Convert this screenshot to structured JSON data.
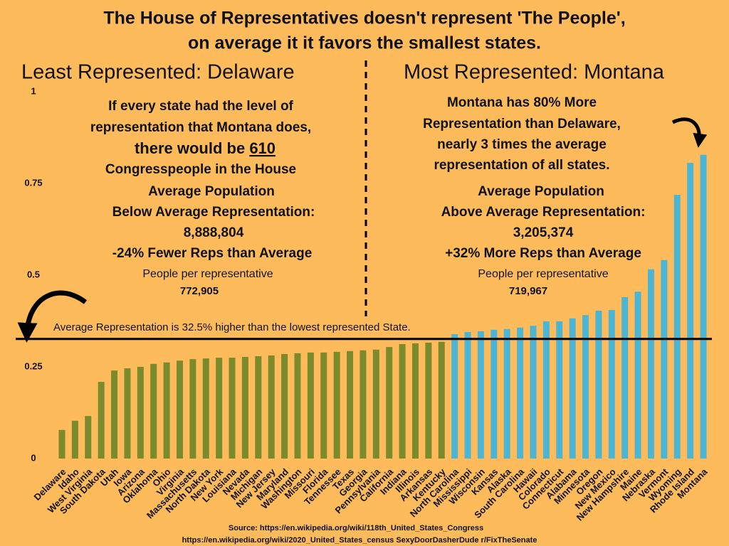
{
  "chart_data": {
    "type": "bar",
    "title_lines": [
      "The House of Representatives doesn't represent 'The People',",
      "on average it it favors the smallest states."
    ],
    "categories": [
      "Delaware",
      "Idaho",
      "West Virginia",
      "South Dakota",
      "Utah",
      "Iowa",
      "Arizona",
      "Oklahoma",
      "Ohio",
      "Virginia",
      "Massachusetts",
      "North Dakota",
      "New York",
      "Louisiana",
      "Nevada",
      "Michigan",
      "New Jersey",
      "Maryland",
      "Washington",
      "Missouri",
      "Florida",
      "Tennessee",
      "Texas",
      "Georgia",
      "Pennsylvania",
      "California",
      "Indiana",
      "Illinois",
      "Arkansas",
      "Kentucky",
      "North Carolina",
      "Mississippi",
      "Wisconsin",
      "Kansas",
      "Alaska",
      "South Carolina",
      "Hawaii",
      "Colorado",
      "Connecticut",
      "Alabama",
      "Minnesota",
      "Oregon",
      "New Mexico",
      "New Hampshire",
      "Maine",
      "Nebraska",
      "Vermont",
      "Wyoming",
      "Rhode Island",
      "Montana"
    ],
    "values": [
      0.078,
      0.103,
      0.116,
      0.209,
      0.24,
      0.246,
      0.25,
      0.258,
      0.262,
      0.267,
      0.271,
      0.273,
      0.275,
      0.275,
      0.277,
      0.279,
      0.281,
      0.285,
      0.287,
      0.289,
      0.289,
      0.291,
      0.293,
      0.295,
      0.297,
      0.304,
      0.312,
      0.314,
      0.316,
      0.318,
      0.339,
      0.345,
      0.347,
      0.351,
      0.353,
      0.357,
      0.362,
      0.374,
      0.374,
      0.382,
      0.391,
      0.403,
      0.405,
      0.44,
      0.455,
      0.516,
      0.541,
      0.719,
      0.806,
      0.828
    ],
    "colors": [
      "#7b8a2b",
      "#7b8a2b",
      "#7b8a2b",
      "#7b8a2b",
      "#7b8a2b",
      "#7b8a2b",
      "#7b8a2b",
      "#7b8a2b",
      "#7b8a2b",
      "#7b8a2b",
      "#7b8a2b",
      "#7b8a2b",
      "#7b8a2b",
      "#7b8a2b",
      "#7b8a2b",
      "#7b8a2b",
      "#7b8a2b",
      "#7b8a2b",
      "#7b8a2b",
      "#7b8a2b",
      "#7b8a2b",
      "#7b8a2b",
      "#7b8a2b",
      "#7b8a2b",
      "#7b8a2b",
      "#7b8a2b",
      "#7b8a2b",
      "#7b8a2b",
      "#7b8a2b",
      "#7b8a2b",
      "#4bb5d3",
      "#4bb5d3",
      "#4bb5d3",
      "#4bb5d3",
      "#4bb5d3",
      "#4bb5d3",
      "#4bb5d3",
      "#4bb5d3",
      "#4bb5d3",
      "#4bb5d3",
      "#4bb5d3",
      "#4bb5d3",
      "#4bb5d3",
      "#4bb5d3",
      "#4bb5d3",
      "#4bb5d3",
      "#4bb5d3",
      "#4bb5d3",
      "#4bb5d3",
      "#4bb5d3"
    ],
    "ylim": [
      0,
      1
    ],
    "yticks": [
      0,
      0.25,
      0.5,
      0.75,
      1
    ],
    "reference_line": {
      "value": 0.326,
      "label": "Average Representation is 32.5% higher than the lowest represented State."
    },
    "left_panel": {
      "heading": "Least Represented: Delaware",
      "intro": [
        "If every state had the level of",
        "representation that Montana does,",
        "Congresspeople in the House"
      ],
      "highlight": {
        "before": "there would be ",
        "number": "610"
      },
      "stats": [
        "Average Population",
        "Below Average Representation:",
        "8,888,804",
        "-24% Fewer Reps than Average"
      ],
      "people_label": "People per representative",
      "people_value": "772,905"
    },
    "right_panel": {
      "heading": "Most Represented: Montana",
      "intro": [
        "Montana has 80% More",
        "Representation than Delaware,",
        "nearly 3 times the average",
        "representation of all states."
      ],
      "stats": [
        "Average Population",
        "Above Average Representation:",
        "3,205,374",
        "+32% More Reps than Average"
      ],
      "people_label": "People per representative",
      "people_value": "719,967"
    },
    "source": [
      "Source: https://en.wikipedia.org/wiki/118th_United_States_Congress",
      "https://en.wikipedia.org/wiki/2020_United_States_census  SexyDoorDasherDude r/FixTheSenate"
    ]
  }
}
